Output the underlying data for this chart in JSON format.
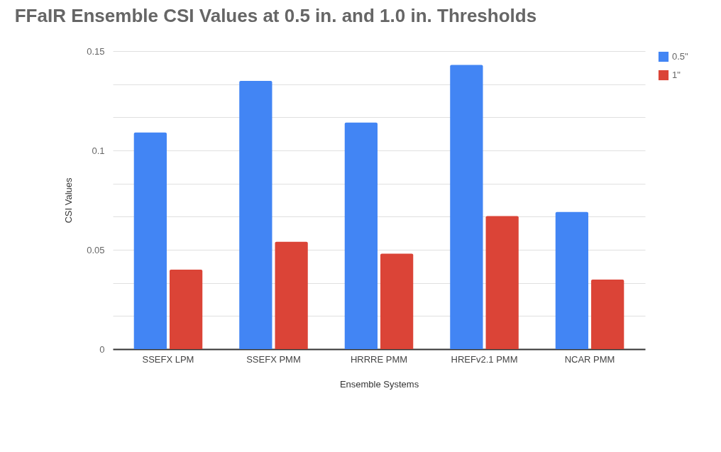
{
  "chart_data": {
    "type": "bar",
    "title": "FFaIR Ensemble CSI Values at 0.5 in. and 1.0 in. Thresholds",
    "xlabel": "Ensemble Systems",
    "ylabel": "CSI Values",
    "categories": [
      "SSEFX LPM",
      "SSEFX PMM",
      "HRRRE PMM",
      "HREFv2.1 PMM",
      "NCAR PMM"
    ],
    "series": [
      {
        "name": "0.5\"",
        "color": "#4285f4",
        "values": [
          0.109,
          0.135,
          0.114,
          0.143,
          0.069
        ]
      },
      {
        "name": "1\"",
        "color": "#db4437",
        "values": [
          0.04,
          0.054,
          0.048,
          0.067,
          0.035
        ]
      }
    ],
    "ylim": [
      0,
      0.15
    ],
    "yticks": [
      0,
      {
        "value": 0.0167,
        "label": null
      },
      {
        "value": 0.0333,
        "label": null
      },
      0.05,
      {
        "value": 0.0667,
        "label": null
      },
      {
        "value": 0.0833,
        "label": null
      },
      {
        "value": 0.1,
        "label": "0.1"
      },
      {
        "value": 0.1167,
        "label": null
      },
      {
        "value": 0.1333,
        "label": null
      },
      0.15
    ],
    "grid": "y",
    "legend": "top right"
  }
}
